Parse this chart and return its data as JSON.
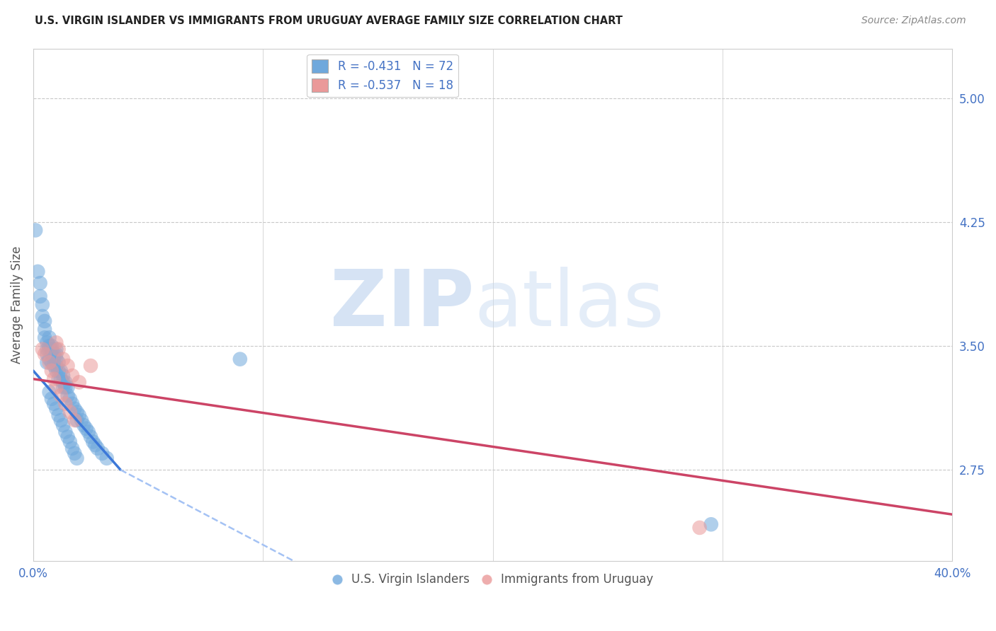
{
  "title": "U.S. VIRGIN ISLANDER VS IMMIGRANTS FROM URUGUAY AVERAGE FAMILY SIZE CORRELATION CHART",
  "source": "Source: ZipAtlas.com",
  "ylabel": "Average Family Size",
  "right_yticks": [
    2.75,
    3.5,
    4.25,
    5.0
  ],
  "xlim": [
    0.0,
    0.4
  ],
  "ylim": [
    2.2,
    5.3
  ],
  "blue_color": "#6fa8dc",
  "pink_color": "#ea9999",
  "trendline_blue_color": "#3c78d8",
  "trendline_pink_color": "#cc4466",
  "trendline_blue_ext_color": "#a4c2f4",
  "grid_color": "#c8c8c8",
  "blue_scatter_x": [
    0.001,
    0.002,
    0.003,
    0.003,
    0.004,
    0.004,
    0.005,
    0.005,
    0.005,
    0.006,
    0.006,
    0.006,
    0.006,
    0.007,
    0.007,
    0.007,
    0.007,
    0.008,
    0.008,
    0.008,
    0.008,
    0.009,
    0.009,
    0.009,
    0.01,
    0.01,
    0.01,
    0.01,
    0.01,
    0.011,
    0.011,
    0.011,
    0.012,
    0.012,
    0.013,
    0.013,
    0.013,
    0.014,
    0.014,
    0.015,
    0.015,
    0.016,
    0.017,
    0.018,
    0.019,
    0.019,
    0.02,
    0.021,
    0.022,
    0.023,
    0.024,
    0.025,
    0.026,
    0.027,
    0.028,
    0.03,
    0.032,
    0.007,
    0.008,
    0.009,
    0.01,
    0.011,
    0.012,
    0.013,
    0.014,
    0.015,
    0.016,
    0.017,
    0.018,
    0.019,
    0.09,
    0.295
  ],
  "blue_scatter_y": [
    4.2,
    3.95,
    3.88,
    3.8,
    3.75,
    3.68,
    3.65,
    3.6,
    3.55,
    3.52,
    3.48,
    3.45,
    3.4,
    3.55,
    3.5,
    3.48,
    3.42,
    3.5,
    3.48,
    3.45,
    3.4,
    3.45,
    3.42,
    3.38,
    3.48,
    3.45,
    3.42,
    3.38,
    3.35,
    3.4,
    3.35,
    3.3,
    3.35,
    3.3,
    3.32,
    3.28,
    3.25,
    3.28,
    3.25,
    3.25,
    3.2,
    3.18,
    3.15,
    3.12,
    3.1,
    3.05,
    3.08,
    3.05,
    3.02,
    3.0,
    2.98,
    2.95,
    2.92,
    2.9,
    2.88,
    2.85,
    2.82,
    3.22,
    3.18,
    3.15,
    3.12,
    3.08,
    3.05,
    3.02,
    2.98,
    2.95,
    2.92,
    2.88,
    2.85,
    2.82,
    3.42,
    2.42
  ],
  "pink_scatter_x": [
    0.004,
    0.005,
    0.007,
    0.008,
    0.009,
    0.01,
    0.011,
    0.013,
    0.015,
    0.017,
    0.01,
    0.012,
    0.014,
    0.016,
    0.018,
    0.02,
    0.29,
    0.025
  ],
  "pink_scatter_y": [
    3.48,
    3.45,
    3.4,
    3.35,
    3.3,
    3.52,
    3.48,
    3.42,
    3.38,
    3.32,
    3.25,
    3.2,
    3.15,
    3.1,
    3.05,
    3.28,
    2.4,
    3.38
  ],
  "trendline_blue_x1": 0.0,
  "trendline_blue_y1": 3.35,
  "trendline_blue_x2": 0.038,
  "trendline_blue_y2": 2.75,
  "trendline_blue_ext_x2": 0.12,
  "trendline_blue_ext_y2": 2.15,
  "trendline_pink_x1": 0.0,
  "trendline_pink_y1": 3.3,
  "trendline_pink_x2": 0.4,
  "trendline_pink_y2": 2.48
}
